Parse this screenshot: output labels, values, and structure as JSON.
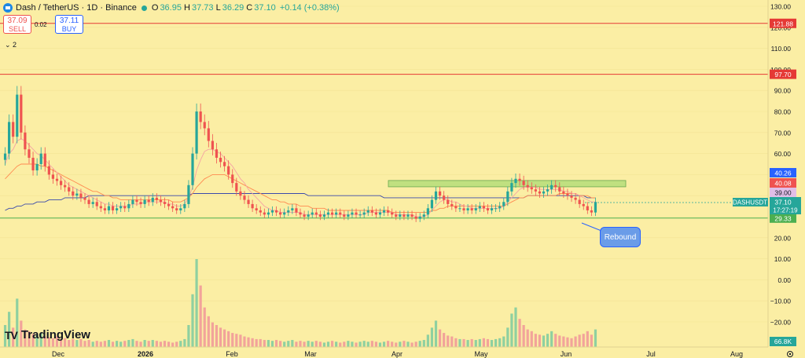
{
  "header": {
    "title": "Dash / TetherUS · 1D · Binance",
    "open_label": "O",
    "open": "36.95",
    "high_label": "H",
    "high": "37.73",
    "low_label": "L",
    "low": "36.29",
    "close_label": "C",
    "close": "37.10",
    "change": "+0.14 (+0.38%)"
  },
  "trade": {
    "sell_price": "37.09",
    "sell_label": "SELL",
    "buy_price": "37.11",
    "buy_label": "BUY",
    "spread": "0.02"
  },
  "indicators_toggle": "⌄ 2",
  "logo": {
    "mark": "TV",
    "text": "TradingView"
  },
  "annotation": {
    "text": "Rebound"
  },
  "colors": {
    "background": "#fbeea4",
    "up": "#26a69a",
    "down": "#ef5350",
    "resistance_line": "#e53935",
    "support_line": "#4caf50",
    "zone": "#b5dd7a",
    "ma_long": "#3949ab",
    "ma_mid": "#ff8a50",
    "ma_short": "#f5a3a3"
  },
  "icons": {
    "symbol": "dash-coin-icon",
    "settings": "gear-icon"
  },
  "chart_data": {
    "type": "candlestick",
    "symbol": "DASHUSDT",
    "timeframe": "1D",
    "exchange": "Binance",
    "x_tick_labels": [
      "Dec",
      "2026",
      "Feb",
      "Mar",
      "Apr",
      "May",
      "Jun",
      "Jul",
      "Aug"
    ],
    "price_axis_ticks": [
      "130.00",
      "120.00",
      "110.00",
      "100.00",
      "90.00",
      "80.00",
      "70.00",
      "60.00",
      "50.00",
      "40.00",
      "30.00",
      "20.00",
      "10.00",
      "0.00",
      "−10.00",
      "−20.00"
    ],
    "price_axis_range": [
      -25,
      132
    ],
    "horizontal_lines": [
      {
        "price": 121.88,
        "label": "121.88",
        "color": "#e53935"
      },
      {
        "price": 97.7,
        "label": "97.70",
        "color": "#e53935"
      },
      {
        "price": 29.33,
        "label": "29.33",
        "color": "#4caf50"
      }
    ],
    "resistance_zone": {
      "from_date": "Apr",
      "to_date": "Jun–Jul",
      "low": 44.2,
      "high": 47.2
    },
    "price_labels": [
      {
        "value": "40.26",
        "color": "#2962ff"
      },
      {
        "value": "40.08",
        "color": "#ef5350"
      },
      {
        "value": "39.00",
        "color": "#e1bee7"
      },
      {
        "value": "37.10",
        "color": "#26a69a",
        "ticker": "DASHUSDT",
        "countdown": "17:27:19"
      }
    ],
    "volume_label": "66.8K",
    "close_series": [
      60,
      75,
      68,
      88,
      70,
      62,
      58,
      52,
      55,
      60,
      54,
      50,
      48,
      47,
      45,
      44,
      42,
      40,
      41,
      39,
      38,
      36,
      37,
      35,
      34,
      33,
      35,
      33,
      34,
      35,
      34,
      36,
      38,
      37,
      36,
      38,
      37,
      39,
      38,
      37,
      36,
      35,
      34,
      33,
      34,
      36,
      45,
      60,
      80,
      75,
      72,
      66,
      62,
      58,
      56,
      54,
      50,
      46,
      42,
      40,
      38,
      36,
      34,
      33,
      32,
      31,
      32,
      33,
      32,
      31,
      32,
      33,
      34,
      32,
      31,
      30,
      31,
      32,
      31,
      30,
      31,
      32,
      31,
      32,
      31,
      30,
      31,
      32,
      31,
      31,
      32,
      33,
      32,
      31,
      32,
      33,
      32,
      31,
      30,
      31,
      30,
      31,
      30,
      29,
      30,
      31,
      34,
      38,
      42,
      40,
      38,
      36,
      35,
      34,
      34,
      33,
      34,
      33,
      34,
      35,
      34,
      33,
      34,
      34,
      35,
      37,
      42,
      46,
      48,
      47,
      45,
      44,
      43,
      42,
      41,
      42,
      43,
      45,
      44,
      42,
      41,
      40,
      39,
      38,
      36,
      35,
      33,
      32,
      37
    ],
    "ma_short": [
      55,
      60,
      62,
      66,
      67,
      66,
      64,
      62,
      60,
      59,
      57,
      55,
      53,
      51,
      49,
      47,
      45,
      44,
      43,
      42,
      41,
      40,
      39,
      38,
      37,
      36,
      36,
      35,
      35,
      35,
      35,
      35,
      36,
      36,
      36,
      37,
      37,
      37,
      37,
      37,
      37,
      36,
      36,
      35,
      35,
      36,
      39,
      44,
      52,
      57,
      61,
      62,
      62,
      61,
      60,
      58,
      56,
      54,
      51,
      48,
      46,
      43,
      41,
      39,
      37,
      35,
      34,
      33,
      33,
      32,
      32,
      32,
      32,
      32,
      32,
      31,
      31,
      31,
      31,
      31,
      31,
      31,
      31,
      31,
      31,
      31,
      31,
      31,
      31,
      31,
      31,
      32,
      32,
      32,
      32,
      32,
      32,
      32,
      31,
      31,
      31,
      31,
      31,
      30,
      30,
      30,
      31,
      33,
      35,
      37,
      38,
      38,
      37,
      37,
      36,
      35,
      35,
      34,
      34,
      34,
      34,
      34,
      34,
      34,
      34,
      35,
      37,
      39,
      41,
      43,
      44,
      44,
      44,
      44,
      43,
      43,
      43,
      43,
      43,
      43,
      42,
      42,
      41,
      41,
      40,
      39,
      38,
      37,
      37
    ],
    "ma_mid": [
      48,
      50,
      52,
      54,
      55,
      55,
      55,
      55,
      55,
      54,
      54,
      53,
      52,
      51,
      50,
      49,
      48,
      47,
      46,
      45,
      44,
      43,
      42,
      42,
      41,
      40,
      40,
      39,
      39,
      38,
      38,
      38,
      38,
      38,
      38,
      38,
      38,
      38,
      38,
      38,
      38,
      38,
      37,
      37,
      37,
      38,
      39,
      41,
      44,
      46,
      48,
      49,
      50,
      50,
      50,
      50,
      49,
      48,
      47,
      46,
      45,
      44,
      43,
      42,
      41,
      40,
      39,
      38,
      38,
      37,
      37,
      36,
      36,
      36,
      35,
      35,
      35,
      34,
      34,
      34,
      34,
      33,
      33,
      33,
      33,
      33,
      33,
      33,
      33,
      33,
      33,
      33,
      33,
      33,
      33,
      33,
      33,
      32,
      32,
      32,
      32,
      32,
      32,
      32,
      32,
      32,
      32,
      33,
      33,
      34,
      34,
      35,
      35,
      35,
      35,
      35,
      35,
      35,
      35,
      35,
      35,
      35,
      35,
      35,
      35,
      35,
      36,
      37,
      38,
      39,
      39,
      40,
      40,
      40,
      40,
      40,
      40,
      40,
      40,
      41,
      41,
      41,
      41,
      41,
      40,
      40,
      40,
      39,
      39
    ],
    "ma_long": [
      33,
      34,
      34,
      35,
      35,
      36,
      36,
      36,
      37,
      37,
      37,
      38,
      38,
      38,
      38,
      39,
      39,
      39,
      39,
      39,
      39,
      40,
      40,
      40,
      40,
      40,
      40,
      40,
      40,
      40,
      40,
      40,
      40,
      40,
      40,
      40,
      40,
      40,
      40,
      40,
      40,
      40,
      40,
      40,
      40,
      40,
      40,
      41,
      41,
      41,
      41,
      41,
      41,
      41,
      41,
      41,
      41,
      41,
      41,
      41,
      41,
      41,
      41,
      41,
      41,
      41,
      41,
      41,
      41,
      41,
      41,
      41,
      41,
      41,
      41,
      41,
      40,
      40,
      40,
      40,
      40,
      40,
      40,
      40,
      40,
      40,
      40,
      40,
      40,
      40,
      40,
      40,
      40,
      40,
      40,
      39,
      39,
      39,
      39,
      39,
      39,
      39,
      39,
      39,
      39,
      39,
      39,
      39,
      39,
      39,
      39,
      39,
      39,
      39,
      39,
      39,
      39,
      39,
      39,
      39,
      39,
      39,
      39,
      39,
      39,
      39,
      39,
      39,
      39,
      39,
      39,
      40,
      40,
      40,
      40,
      40,
      40,
      40,
      40,
      40,
      40,
      40,
      40,
      40,
      40,
      40,
      39,
      39,
      39
    ],
    "volume": [
      25,
      40,
      22,
      55,
      30,
      20,
      18,
      15,
      14,
      16,
      12,
      11,
      10,
      12,
      9,
      10,
      8,
      9,
      8,
      9,
      7,
      8,
      6,
      7,
      6,
      7,
      8,
      6,
      7,
      6,
      7,
      8,
      9,
      7,
      6,
      8,
      7,
      8,
      7,
      6,
      7,
      6,
      5,
      6,
      7,
      9,
      25,
      60,
      100,
      70,
      45,
      35,
      28,
      25,
      22,
      20,
      18,
      16,
      15,
      14,
      12,
      11,
      10,
      9,
      9,
      8,
      8,
      7,
      8,
      7,
      6,
      7,
      8,
      6,
      7,
      6,
      7,
      6,
      7,
      6,
      5,
      6,
      7,
      6,
      5,
      6,
      7,
      6,
      5,
      6,
      7,
      6,
      7,
      6,
      5,
      6,
      7,
      6,
      5,
      6,
      7,
      6,
      5,
      6,
      7,
      8,
      14,
      22,
      30,
      20,
      16,
      13,
      12,
      10,
      9,
      9,
      8,
      9,
      8,
      9,
      10,
      9,
      8,
      9,
      10,
      12,
      22,
      38,
      45,
      32,
      25,
      20,
      18,
      15,
      14,
      13,
      15,
      18,
      15,
      13,
      12,
      11,
      10,
      12,
      14,
      15,
      18,
      14,
      20
    ]
  }
}
